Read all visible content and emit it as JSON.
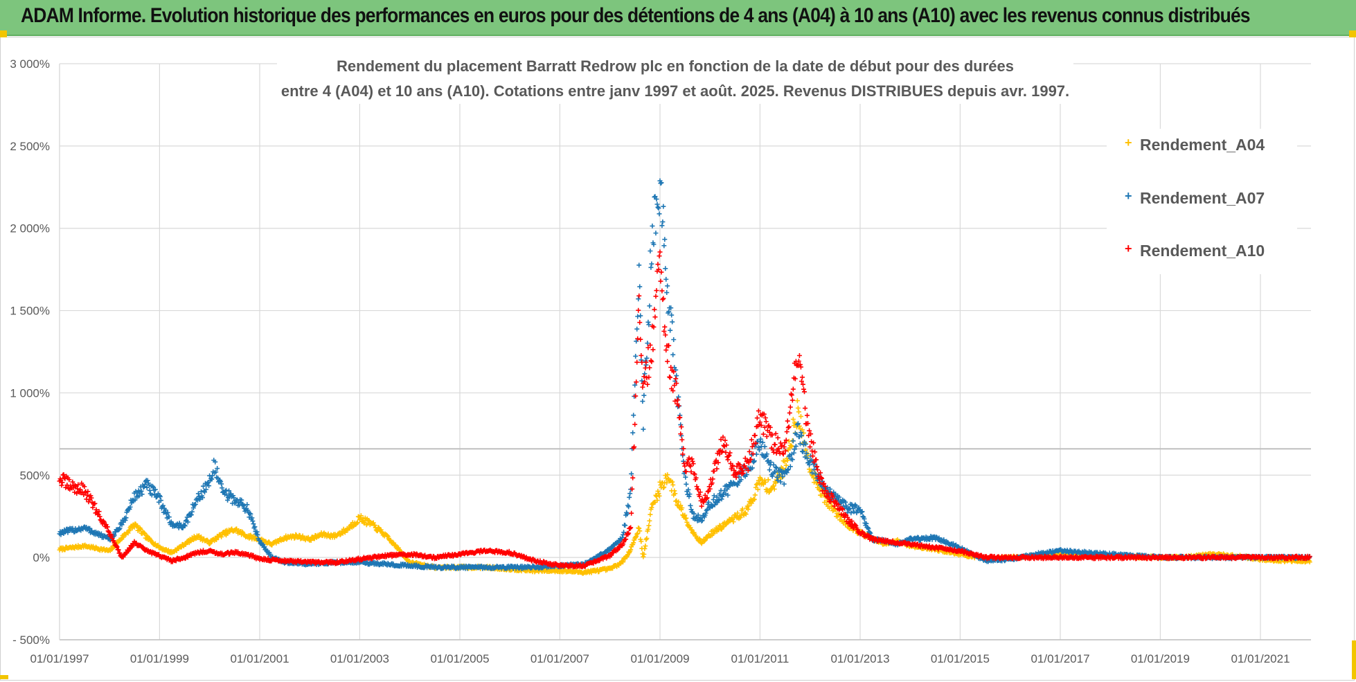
{
  "banner": {
    "title": "ADAM Informe. Evolution historique des performances en euros pour des détentions de 4 ans (A04) à 10 ans (A10) avec les revenus connus distribués",
    "background": "#7dc57d"
  },
  "chart_data": {
    "type": "scatter",
    "title_lines": [
      "Rendement du placement Barratt Redrow plc en fonction de la date de début pour des durées",
      "entre 4 (A04) et 10 ans (A10).  Cotations entre janv 1997 et août. 2025. Revenus DISTRIBUES depuis avr. 1997."
    ],
    "xlabel": "",
    "ylabel": "",
    "x_axis": "date",
    "xlim": [
      "1997-01-01",
      "2022-02-01"
    ],
    "ylim": [
      -500,
      3000
    ],
    "y_ticks": [
      -500,
      0,
      500,
      1000,
      1500,
      2000,
      2500,
      3000
    ],
    "y_tick_labels": [
      "- 500%",
      "0%",
      "500%",
      "1 000%",
      "1 500%",
      "2 000%",
      "2 500%",
      "3 000%"
    ],
    "x_tick_labels": [
      "01/01/1997",
      "01/01/1999",
      "01/01/2001",
      "01/01/2003",
      "01/01/2005",
      "01/01/2007",
      "01/01/2009",
      "01/01/2011",
      "01/01/2013",
      "01/01/2015",
      "01/01/2017",
      "01/01/2019",
      "01/01/2021"
    ],
    "grid": true,
    "legend_position": "top-right",
    "series": [
      {
        "name": "Rendement_A04",
        "color": "#ffc000",
        "points": [
          [
            "1997-01-01",
            50
          ],
          [
            "1997-07-01",
            70
          ],
          [
            "1998-01-01",
            40
          ],
          [
            "1998-04-01",
            120
          ],
          [
            "1998-07-01",
            200
          ],
          [
            "1998-10-01",
            120
          ],
          [
            "1999-01-01",
            60
          ],
          [
            "1999-04-01",
            30
          ],
          [
            "1999-07-01",
            80
          ],
          [
            "1999-10-01",
            130
          ],
          [
            "2000-01-01",
            90
          ],
          [
            "2000-04-01",
            140
          ],
          [
            "2000-07-01",
            170
          ],
          [
            "2000-10-01",
            130
          ],
          [
            "2001-01-01",
            110
          ],
          [
            "2001-04-01",
            80
          ],
          [
            "2001-07-01",
            120
          ],
          [
            "2001-10-01",
            130
          ],
          [
            "2002-01-01",
            110
          ],
          [
            "2002-04-01",
            140
          ],
          [
            "2002-07-01",
            130
          ],
          [
            "2002-10-01",
            170
          ],
          [
            "2003-01-01",
            240
          ],
          [
            "2003-04-01",
            200
          ],
          [
            "2003-07-01",
            140
          ],
          [
            "2003-10-01",
            60
          ],
          [
            "2004-01-01",
            -30
          ],
          [
            "2004-07-01",
            -60
          ],
          [
            "2005-01-01",
            -60
          ],
          [
            "2005-07-01",
            -60
          ],
          [
            "2006-01-01",
            -70
          ],
          [
            "2006-07-01",
            -80
          ],
          [
            "2007-01-01",
            -80
          ],
          [
            "2007-07-01",
            -90
          ],
          [
            "2008-01-01",
            -70
          ],
          [
            "2008-04-01",
            -30
          ],
          [
            "2008-06-01",
            50
          ],
          [
            "2008-08-01",
            180
          ],
          [
            "2008-09-01",
            0
          ],
          [
            "2008-11-01",
            300
          ],
          [
            "2009-01-01",
            420
          ],
          [
            "2009-03-01",
            500
          ],
          [
            "2009-05-01",
            350
          ],
          [
            "2009-07-01",
            250
          ],
          [
            "2009-09-01",
            150
          ],
          [
            "2009-11-01",
            90
          ],
          [
            "2010-01-01",
            140
          ],
          [
            "2010-04-01",
            190
          ],
          [
            "2010-07-01",
            240
          ],
          [
            "2010-10-01",
            290
          ],
          [
            "2011-01-01",
            460
          ],
          [
            "2011-04-01",
            420
          ],
          [
            "2011-07-01",
            560
          ],
          [
            "2011-10-01",
            880
          ],
          [
            "2012-01-01",
            560
          ],
          [
            "2012-04-01",
            380
          ],
          [
            "2012-07-01",
            280
          ],
          [
            "2012-10-01",
            200
          ],
          [
            "2013-01-01",
            150
          ],
          [
            "2013-04-01",
            110
          ],
          [
            "2013-07-01",
            80
          ],
          [
            "2013-10-01",
            100
          ],
          [
            "2014-01-01",
            70
          ],
          [
            "2014-07-01",
            50
          ],
          [
            "2015-01-01",
            20
          ],
          [
            "2015-07-01",
            -10
          ],
          [
            "2016-01-01",
            0
          ],
          [
            "2016-07-01",
            10
          ],
          [
            "2017-01-01",
            30
          ],
          [
            "2017-07-01",
            20
          ],
          [
            "2018-01-01",
            10
          ],
          [
            "2018-07-01",
            5
          ],
          [
            "2019-01-01",
            0
          ],
          [
            "2019-07-01",
            0
          ],
          [
            "2020-01-01",
            20
          ],
          [
            "2020-07-01",
            10
          ],
          [
            "2021-01-01",
            -10
          ],
          [
            "2021-07-01",
            -20
          ],
          [
            "2022-01-01",
            -20
          ]
        ]
      },
      {
        "name": "Rendement_A07",
        "color": "#1f77b4",
        "points": [
          [
            "1997-01-01",
            150
          ],
          [
            "1997-07-01",
            180
          ],
          [
            "1998-01-01",
            110
          ],
          [
            "1998-04-01",
            200
          ],
          [
            "1998-07-01",
            370
          ],
          [
            "1998-10-01",
            440
          ],
          [
            "1999-01-01",
            350
          ],
          [
            "1999-04-01",
            200
          ],
          [
            "1999-07-01",
            190
          ],
          [
            "1999-10-01",
            350
          ],
          [
            "2000-01-01",
            460
          ],
          [
            "2000-02-01",
            570
          ],
          [
            "2000-04-01",
            400
          ],
          [
            "2000-07-01",
            350
          ],
          [
            "2000-10-01",
            300
          ],
          [
            "2001-01-01",
            100
          ],
          [
            "2001-04-01",
            0
          ],
          [
            "2001-07-01",
            -30
          ],
          [
            "2002-01-01",
            -40
          ],
          [
            "2002-07-01",
            -30
          ],
          [
            "2003-01-01",
            -30
          ],
          [
            "2003-07-01",
            -40
          ],
          [
            "2004-01-01",
            -50
          ],
          [
            "2004-07-01",
            -60
          ],
          [
            "2005-01-01",
            -60
          ],
          [
            "2005-07-01",
            -60
          ],
          [
            "2006-01-01",
            -60
          ],
          [
            "2006-07-01",
            -60
          ],
          [
            "2007-01-01",
            -50
          ],
          [
            "2007-07-01",
            -40
          ],
          [
            "2008-01-01",
            50
          ],
          [
            "2008-04-01",
            120
          ],
          [
            "2008-06-01",
            400
          ],
          [
            "2008-08-01",
            1700
          ],
          [
            "2008-09-01",
            850
          ],
          [
            "2008-11-01",
            1900
          ],
          [
            "2009-01-01",
            2270
          ],
          [
            "2009-03-01",
            1550
          ],
          [
            "2009-05-01",
            1100
          ],
          [
            "2009-07-01",
            500
          ],
          [
            "2009-09-01",
            250
          ],
          [
            "2009-11-01",
            230
          ],
          [
            "2010-01-01",
            330
          ],
          [
            "2010-04-01",
            380
          ],
          [
            "2010-07-01",
            460
          ],
          [
            "2010-10-01",
            540
          ],
          [
            "2011-01-01",
            680
          ],
          [
            "2011-04-01",
            530
          ],
          [
            "2011-07-01",
            480
          ],
          [
            "2011-10-01",
            760
          ],
          [
            "2012-01-01",
            580
          ],
          [
            "2012-04-01",
            430
          ],
          [
            "2012-07-01",
            360
          ],
          [
            "2012-10-01",
            300
          ],
          [
            "2013-01-01",
            290
          ],
          [
            "2013-04-01",
            110
          ],
          [
            "2013-07-01",
            100
          ],
          [
            "2013-10-01",
            80
          ],
          [
            "2014-01-01",
            110
          ],
          [
            "2014-07-01",
            120
          ],
          [
            "2015-01-01",
            60
          ],
          [
            "2015-07-01",
            -20
          ],
          [
            "2016-01-01",
            -10
          ],
          [
            "2016-07-01",
            20
          ],
          [
            "2017-01-01",
            40
          ],
          [
            "2017-07-01",
            30
          ],
          [
            "2018-01-01",
            20
          ],
          [
            "2018-07-01",
            10
          ],
          [
            "2019-01-01",
            0
          ],
          [
            "2019-07-01",
            0
          ],
          [
            "2020-01-01",
            0
          ],
          [
            "2020-07-01",
            0
          ],
          [
            "2021-01-01",
            0
          ],
          [
            "2021-07-01",
            0
          ],
          [
            "2022-01-01",
            0
          ]
        ]
      },
      {
        "name": "Rendement_A10",
        "color": "#ff0000",
        "points": [
          [
            "1997-01-01",
            480
          ],
          [
            "1997-04-01",
            430
          ],
          [
            "1997-07-01",
            410
          ],
          [
            "1997-10-01",
            280
          ],
          [
            "1998-01-01",
            150
          ],
          [
            "1998-04-01",
            0
          ],
          [
            "1998-07-01",
            90
          ],
          [
            "1998-10-01",
            40
          ],
          [
            "1999-01-01",
            10
          ],
          [
            "1999-04-01",
            -20
          ],
          [
            "1999-07-01",
            0
          ],
          [
            "1999-10-01",
            30
          ],
          [
            "2000-01-01",
            40
          ],
          [
            "2000-04-01",
            20
          ],
          [
            "2000-07-01",
            30
          ],
          [
            "2000-10-01",
            20
          ],
          [
            "2001-01-01",
            -10
          ],
          [
            "2001-07-01",
            -20
          ],
          [
            "2002-01-01",
            -30
          ],
          [
            "2002-07-01",
            -30
          ],
          [
            "2003-01-01",
            -10
          ],
          [
            "2003-07-01",
            10
          ],
          [
            "2004-01-01",
            20
          ],
          [
            "2004-07-01",
            0
          ],
          [
            "2005-01-01",
            20
          ],
          [
            "2005-07-01",
            40
          ],
          [
            "2006-01-01",
            30
          ],
          [
            "2006-07-01",
            -20
          ],
          [
            "2007-01-01",
            -50
          ],
          [
            "2007-07-01",
            -50
          ],
          [
            "2008-01-01",
            10
          ],
          [
            "2008-04-01",
            80
          ],
          [
            "2008-06-01",
            180
          ],
          [
            "2008-08-01",
            1500
          ],
          [
            "2008-09-01",
            1000
          ],
          [
            "2008-11-01",
            1300
          ],
          [
            "2009-01-01",
            1750
          ],
          [
            "2009-03-01",
            1200
          ],
          [
            "2009-05-01",
            1000
          ],
          [
            "2009-07-01",
            550
          ],
          [
            "2009-09-01",
            560
          ],
          [
            "2009-11-01",
            340
          ],
          [
            "2010-01-01",
            420
          ],
          [
            "2010-04-01",
            700
          ],
          [
            "2010-07-01",
            530
          ],
          [
            "2010-10-01",
            560
          ],
          [
            "2011-01-01",
            850
          ],
          [
            "2011-04-01",
            710
          ],
          [
            "2011-07-01",
            640
          ],
          [
            "2011-10-01",
            1220
          ],
          [
            "2012-01-01",
            720
          ],
          [
            "2012-04-01",
            430
          ],
          [
            "2012-07-01",
            330
          ],
          [
            "2012-10-01",
            230
          ],
          [
            "2013-01-01",
            150
          ],
          [
            "2013-04-01",
            110
          ],
          [
            "2013-07-01",
            100
          ],
          [
            "2013-10-01",
            90
          ],
          [
            "2014-01-01",
            80
          ],
          [
            "2014-07-01",
            60
          ],
          [
            "2015-01-01",
            40
          ],
          [
            "2015-07-01",
            0
          ],
          [
            "2016-01-01",
            0
          ],
          [
            "2016-07-01",
            0
          ],
          [
            "2017-01-01",
            0
          ],
          [
            "2017-07-01",
            0
          ],
          [
            "2018-01-01",
            0
          ],
          [
            "2018-07-01",
            0
          ],
          [
            "2019-01-01",
            0
          ],
          [
            "2019-07-01",
            0
          ],
          [
            "2020-01-01",
            0
          ],
          [
            "2020-07-01",
            0
          ],
          [
            "2021-01-01",
            0
          ],
          [
            "2021-07-01",
            0
          ],
          [
            "2022-01-01",
            0
          ]
        ]
      }
    ]
  }
}
